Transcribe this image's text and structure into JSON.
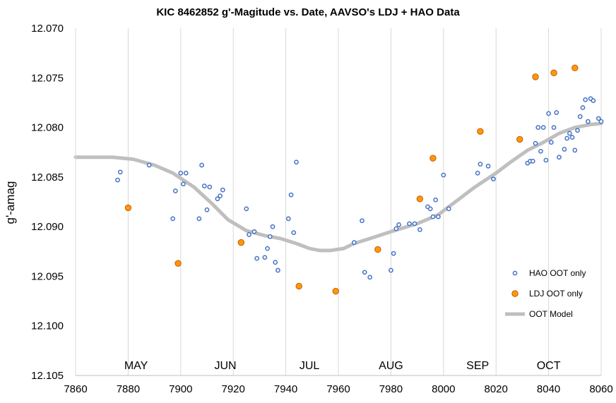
{
  "chart_data": {
    "type": "scatter",
    "title": "KIC 8462852 g'-Magitude vs. Date, AAVSO's LDJ + HAO Data",
    "xlabel": "",
    "ylabel": "g'-amag",
    "xlim": [
      7860,
      8060
    ],
    "ylim": [
      12.07,
      12.105
    ],
    "y_reversed": true,
    "grid": "vertical",
    "legend_position": "bottom-right",
    "x_ticks": [
      "7860",
      "7880",
      "7900",
      "7920",
      "7940",
      "7960",
      "7980",
      "8000",
      "8020",
      "8040",
      "8060"
    ],
    "y_ticks": [
      "12.070",
      "12.075",
      "12.080",
      "12.085",
      "12.090",
      "12.095",
      "12.100",
      "12.105"
    ],
    "month_labels": [
      {
        "text": "MAY",
        "x": 7883
      },
      {
        "text": "JUN",
        "x": 7917
      },
      {
        "text": "JUL",
        "x": 7949
      },
      {
        "text": "AUG",
        "x": 7980
      },
      {
        "text": "SEP",
        "x": 8013
      },
      {
        "text": "OCT",
        "x": 8040
      }
    ],
    "series": [
      {
        "name": "HAO OOT only",
        "style": "open-circle",
        "color": "#4472C4",
        "points": [
          [
            7876,
            12.0853
          ],
          [
            7877,
            12.0845
          ],
          [
            7888,
            12.0838
          ],
          [
            7897,
            12.0892
          ],
          [
            7898,
            12.0864
          ],
          [
            7900,
            12.0846
          ],
          [
            7901,
            12.0857
          ],
          [
            7902,
            12.0846
          ],
          [
            7907,
            12.0892
          ],
          [
            7908,
            12.0838
          ],
          [
            7909,
            12.0859
          ],
          [
            7910,
            12.0883
          ],
          [
            7911,
            12.086
          ],
          [
            7914,
            12.0872
          ],
          [
            7915,
            12.0869
          ],
          [
            7916,
            12.0863
          ],
          [
            7925,
            12.0882
          ],
          [
            7926,
            12.0908
          ],
          [
            7928,
            12.0905
          ],
          [
            7929,
            12.0932
          ],
          [
            7932,
            12.0931
          ],
          [
            7933,
            12.0922
          ],
          [
            7934,
            12.091
          ],
          [
            7935,
            12.09
          ],
          [
            7936,
            12.0936
          ],
          [
            7937,
            12.0944
          ],
          [
            7941,
            12.0892
          ],
          [
            7942,
            12.0868
          ],
          [
            7943,
            12.0906
          ],
          [
            7944,
            12.0835
          ],
          [
            7966,
            12.0916
          ],
          [
            7969,
            12.0894
          ],
          [
            7970,
            12.0946
          ],
          [
            7972,
            12.0951
          ],
          [
            7980,
            12.0944
          ],
          [
            7981,
            12.0927
          ],
          [
            7982,
            12.0902
          ],
          [
            7983,
            12.0898
          ],
          [
            7987,
            12.0897
          ],
          [
            7989,
            12.0897
          ],
          [
            7991,
            12.0903
          ],
          [
            7994,
            12.088
          ],
          [
            7995,
            12.0882
          ],
          [
            7996,
            12.089
          ],
          [
            7997,
            12.0873
          ],
          [
            7998,
            12.089
          ],
          [
            8000,
            12.0848
          ],
          [
            8002,
            12.0882
          ],
          [
            8013,
            12.0846
          ],
          [
            8014,
            12.0837
          ],
          [
            8017,
            12.0839
          ],
          [
            8019,
            12.0852
          ],
          [
            8032,
            12.0836
          ],
          [
            8033,
            12.0834
          ],
          [
            8034,
            12.0834
          ],
          [
            8035,
            12.0816
          ],
          [
            8036,
            12.08
          ],
          [
            8037,
            12.0824
          ],
          [
            8038,
            12.08
          ],
          [
            8039,
            12.0833
          ],
          [
            8040,
            12.0786
          ],
          [
            8041,
            12.0815
          ],
          [
            8042,
            12.08
          ],
          [
            8043,
            12.0785
          ],
          [
            8044,
            12.083
          ],
          [
            8046,
            12.0822
          ],
          [
            8047,
            12.0811
          ],
          [
            8048,
            12.0806
          ],
          [
            8049,
            12.081
          ],
          [
            8050,
            12.0823
          ],
          [
            8051,
            12.0803
          ],
          [
            8052,
            12.0789
          ],
          [
            8053,
            12.078
          ],
          [
            8054,
            12.0772
          ],
          [
            8055,
            12.0794
          ],
          [
            8056,
            12.0771
          ],
          [
            8057,
            12.0773
          ],
          [
            8059,
            12.0791
          ],
          [
            8060,
            12.0794
          ]
        ]
      },
      {
        "name": "LDJ OOT only",
        "style": "filled-circle",
        "color": "#FF9900",
        "points": [
          [
            7880,
            12.0881
          ],
          [
            7899,
            12.0937
          ],
          [
            7923,
            12.0916
          ],
          [
            7945,
            12.096
          ],
          [
            7959,
            12.0965
          ],
          [
            7975,
            12.0923
          ],
          [
            7991,
            12.0872
          ],
          [
            7996,
            12.0831
          ],
          [
            8014,
            12.0804
          ],
          [
            8029,
            12.0812
          ],
          [
            8035,
            12.0749
          ],
          [
            8042,
            12.0745
          ],
          [
            8050,
            12.074
          ]
        ]
      },
      {
        "name": "OOT Model",
        "style": "line",
        "color": "#BFBFBF",
        "points": [
          [
            7860,
            12.083
          ],
          [
            7867,
            12.083
          ],
          [
            7874,
            12.083
          ],
          [
            7882,
            12.0832
          ],
          [
            7890,
            12.0838
          ],
          [
            7897,
            12.0846
          ],
          [
            7905,
            12.086
          ],
          [
            7912,
            12.0877
          ],
          [
            7918,
            12.0893
          ],
          [
            7925,
            12.0904
          ],
          [
            7932,
            12.0909
          ],
          [
            7938,
            12.0912
          ],
          [
            7944,
            12.0917
          ],
          [
            7949,
            12.0922
          ],
          [
            7953,
            12.0924
          ],
          [
            7957,
            12.0924
          ],
          [
            7962,
            12.0922
          ],
          [
            7966,
            12.0917
          ],
          [
            7972,
            12.0912
          ],
          [
            7980,
            12.0905
          ],
          [
            7990,
            12.0897
          ],
          [
            7998,
            12.0888
          ],
          [
            8005,
            12.0874
          ],
          [
            8012,
            12.086
          ],
          [
            8020,
            12.0846
          ],
          [
            8026,
            12.0834
          ],
          [
            8032,
            12.0823
          ],
          [
            8038,
            12.0815
          ],
          [
            8044,
            12.0806
          ],
          [
            8050,
            12.08
          ],
          [
            8056,
            12.0797
          ],
          [
            8060,
            12.0796
          ]
        ]
      }
    ]
  }
}
